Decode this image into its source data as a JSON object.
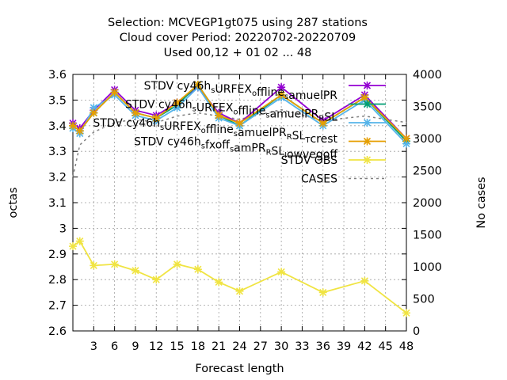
{
  "chart_data": {
    "type": "line",
    "title": [
      "Selection: MCVEGP1gt075 using   287 stations",
      "Cloud cover   Period: 20220702-20220709",
      "Used  00,12  + 01 02 ... 48"
    ],
    "xlabel": "Forecast length",
    "ylabel": "octas",
    "y2label": "No cases",
    "xlim": [
      0,
      48
    ],
    "ylim": [
      2.6,
      3.6
    ],
    "y2lim": [
      0,
      4000
    ],
    "xticks": [
      3,
      6,
      9,
      12,
      15,
      18,
      21,
      24,
      27,
      30,
      33,
      36,
      39,
      42,
      45,
      48
    ],
    "yticks": [
      2.6,
      2.7,
      2.8,
      2.9,
      3.0,
      3.1,
      3.2,
      3.3,
      3.4,
      3.5,
      3.6
    ],
    "ytick_labels": [
      "2.6",
      "2.7",
      "2.8",
      "2.9",
      "3",
      "3.1",
      "3.2",
      "3.3",
      "3.4",
      "3.5",
      "3.6"
    ],
    "y2ticks": [
      0,
      500,
      1000,
      1500,
      2000,
      2500,
      3000,
      3500,
      4000
    ],
    "grid": true,
    "legend_position": "top-right",
    "x": [
      0,
      1,
      3,
      6,
      9,
      12,
      15,
      18,
      21,
      24,
      30,
      36,
      42,
      48
    ],
    "series": [
      {
        "name": "STDV cy46h_sURFEX_offline_amuelPR",
        "color": "#9400d3",
        "marker": "x-star",
        "axis": "y",
        "values": [
          3.41,
          3.39,
          3.46,
          3.54,
          3.46,
          3.44,
          3.49,
          3.55,
          3.45,
          3.41,
          3.55,
          3.42,
          3.52,
          3.35
        ]
      },
      {
        "name": "STDV cy46h_sURFEX_offline_samuelPR_RSL",
        "color": "#009e73",
        "marker": "x-star",
        "axis": "y",
        "values": [
          3.4,
          3.38,
          3.45,
          3.53,
          3.45,
          3.43,
          3.48,
          3.56,
          3.44,
          3.4,
          3.52,
          3.41,
          3.51,
          3.34
        ]
      },
      {
        "name": "STDV cy46h_sURFEX_offline_samuelPR_RSL_Tcrest",
        "color": "#56b4e9",
        "marker": "x-star",
        "axis": "y",
        "values": [
          3.39,
          3.37,
          3.47,
          3.52,
          3.44,
          3.42,
          3.47,
          3.55,
          3.43,
          3.4,
          3.51,
          3.4,
          3.5,
          3.33
        ]
      },
      {
        "name": "STDV cy46h_sfxoff_samPR_RSL_lowvegoff",
        "color": "#e69f00",
        "marker": "x-star",
        "axis": "y",
        "values": [
          3.4,
          3.38,
          3.45,
          3.53,
          3.45,
          3.43,
          3.49,
          3.56,
          3.44,
          3.41,
          3.52,
          3.41,
          3.51,
          3.35
        ]
      },
      {
        "name": "STDV OBS",
        "color": "#f0e442",
        "marker": "x-star",
        "axis": "y",
        "values": [
          2.93,
          2.95,
          2.855,
          2.86,
          2.835,
          2.8,
          2.86,
          2.84,
          2.79,
          2.755,
          2.83,
          2.75,
          2.795,
          2.67
        ]
      },
      {
        "name": "CASES",
        "color": "#808080",
        "marker": "none",
        "dashed": true,
        "axis": "y2",
        "values": [
          2400,
          2900,
          3100,
          3250,
          3300,
          3250,
          3350,
          3400,
          3350,
          3300,
          3450,
          3280,
          3350,
          3250
        ]
      }
    ],
    "legend_labels": [
      {
        "segments": [
          [
            "STDV cy46h",
            0
          ],
          [
            "s",
            1
          ],
          [
            "URFEX",
            0
          ],
          [
            "o",
            1
          ],
          [
            "ffline",
            0
          ],
          [
            "s",
            1
          ],
          [
            "amuelPR",
            0
          ]
        ]
      },
      {
        "segments": [
          [
            "STDV cy46h",
            0
          ],
          [
            "s",
            1
          ],
          [
            "URFEX",
            0
          ],
          [
            "o",
            1
          ],
          [
            "ffline",
            0
          ],
          [
            "s",
            1
          ],
          [
            "amuelPR",
            0
          ],
          [
            "R",
            1
          ],
          [
            "SL",
            0
          ]
        ]
      },
      {
        "segments": [
          [
            "STDV cy46h",
            0
          ],
          [
            "s",
            1
          ],
          [
            "URFEX",
            0
          ],
          [
            "o",
            1
          ],
          [
            "ffline",
            0
          ],
          [
            "s",
            1
          ],
          [
            "amuelPR",
            0
          ],
          [
            "R",
            1
          ],
          [
            "SL",
            0
          ],
          [
            "T",
            1
          ],
          [
            "crest",
            0
          ]
        ]
      },
      {
        "segments": [
          [
            "STDV cy46h",
            0
          ],
          [
            "s",
            1
          ],
          [
            "fxoff",
            0
          ],
          [
            "s",
            1
          ],
          [
            "amPR",
            0
          ],
          [
            "R",
            1
          ],
          [
            "SL",
            0
          ],
          [
            "l",
            1
          ],
          [
            "owvegoff",
            0
          ]
        ]
      },
      {
        "segments": [
          [
            "STDV OBS",
            0
          ]
        ]
      },
      {
        "segments": [
          [
            "CASES",
            0
          ]
        ]
      }
    ]
  }
}
